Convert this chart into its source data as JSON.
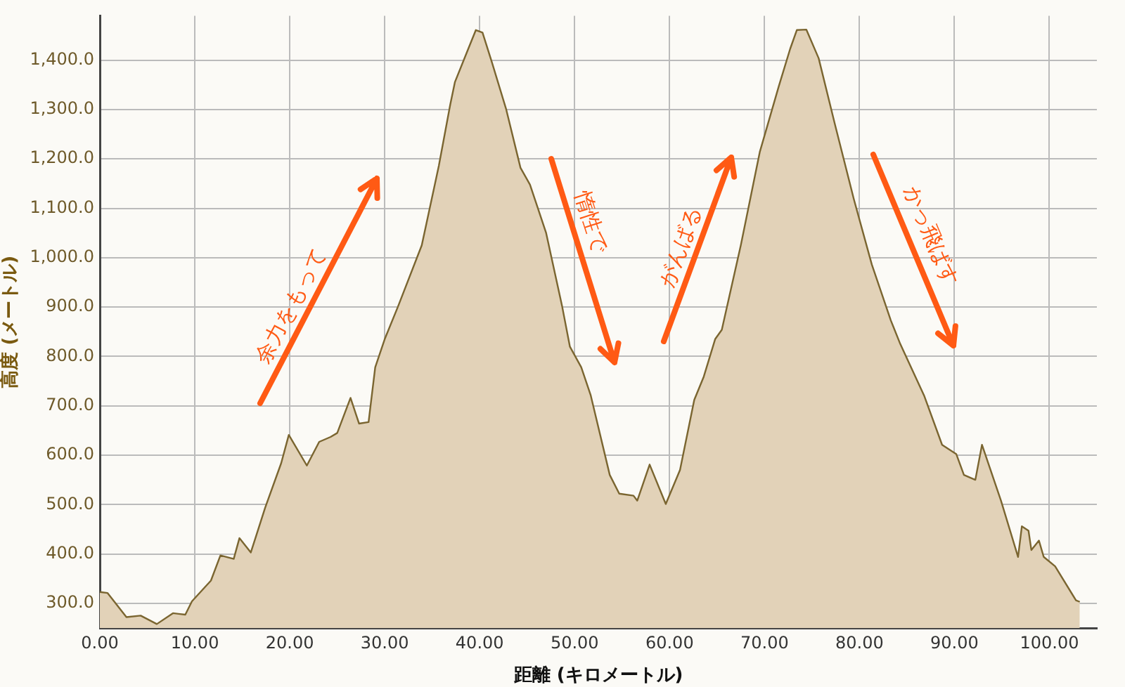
{
  "chart_data": {
    "type": "area",
    "xlabel": "距離 (キロメートル)",
    "ylabel": "高度 (メートル)",
    "x": [
      0,
      0.8,
      2.8,
      4.3,
      6.0,
      7.7,
      9.0,
      9.7,
      11.7,
      12.7,
      14.1,
      14.7,
      15.9,
      17.4,
      19.1,
      19.9,
      21.8,
      23.1,
      24.3,
      25.0,
      26.4,
      27.3,
      28.3,
      29.0,
      30.0,
      31.4,
      33.9,
      35.7,
      36.9,
      37.4,
      38.8,
      39.6,
      40.3,
      41.3,
      42.8,
      44.3,
      45.3,
      47.0,
      48.7,
      49.5,
      50.7,
      51.7,
      53.7,
      54.7,
      56.2,
      56.6,
      57.9,
      59.6,
      61.1,
      62.6,
      63.6,
      64.8,
      65.5,
      67.5,
      69.5,
      71.5,
      72.7,
      73.4,
      74.4,
      75.7,
      77.4,
      79.4,
      81.3,
      83.3,
      84.3,
      86.8,
      88.7,
      90.2,
      91.0,
      92.2,
      92.9,
      94.9,
      96.7,
      97.1,
      97.8,
      98.1,
      98.9,
      99.4,
      100.6,
      102.8,
      103.2
    ],
    "series": [
      {
        "color": "#e2d2b8",
        "values": [
          323,
          321,
          272,
          275,
          258,
          280,
          277,
          304,
          346,
          397,
          390,
          432,
          403,
          493,
          584,
          641,
          579,
          627,
          637,
          645,
          716,
          664,
          667,
          778,
          835,
          901,
          1025,
          1186,
          1310,
          1356,
          1423,
          1461,
          1456,
          1395,
          1300,
          1182,
          1148,
          1050,
          900,
          820,
          778,
          721,
          560,
          522,
          518,
          508,
          581,
          501,
          570,
          712,
          759,
          835,
          854,
          1025,
          1214,
          1347,
          1423,
          1461,
          1462,
          1404,
          1271,
          1119,
          986,
          873,
          825,
          721,
          621,
          602,
          560,
          550,
          621,
          508,
          394,
          456,
          447,
          408,
          427,
          394,
          375,
          306,
          303
        ]
      }
    ],
    "xlim": [
      0,
      105
    ],
    "ylim": [
      250,
      1490
    ],
    "xticks": [
      {
        "value": 0,
        "label": "0.00"
      },
      {
        "value": 10,
        "label": "10.00"
      },
      {
        "value": 20,
        "label": "20.00"
      },
      {
        "value": 30,
        "label": "30.00"
      },
      {
        "value": 40,
        "label": "40.00"
      },
      {
        "value": 50,
        "label": "50.00"
      },
      {
        "value": 60,
        "label": "60.00"
      },
      {
        "value": 70,
        "label": "70.00"
      },
      {
        "value": 80,
        "label": "80.00"
      },
      {
        "value": 90,
        "label": "90.00"
      },
      {
        "value": 100,
        "label": "100.00"
      }
    ],
    "yticks": [
      {
        "value": 300,
        "label": "300.0"
      },
      {
        "value": 400,
        "label": "400.0"
      },
      {
        "value": 500,
        "label": "500.0"
      },
      {
        "value": 600,
        "label": "600.0"
      },
      {
        "value": 700,
        "label": "700.0"
      },
      {
        "value": 800,
        "label": "800.0"
      },
      {
        "value": 900,
        "label": "900.0"
      },
      {
        "value": 1000,
        "label": "1,000.0"
      },
      {
        "value": 1100,
        "label": "1,100.0"
      },
      {
        "value": 1200,
        "label": "1,200.0"
      },
      {
        "value": 1300,
        "label": "1,300.0"
      },
      {
        "value": 1400,
        "label": "1,400.0"
      }
    ],
    "grid": true,
    "legend": false,
    "marker": "none",
    "line_style": "solid",
    "annotations": [
      "余力をもって",
      "惰性で",
      "がんばる",
      "かっ飛ばす"
    ]
  }
}
